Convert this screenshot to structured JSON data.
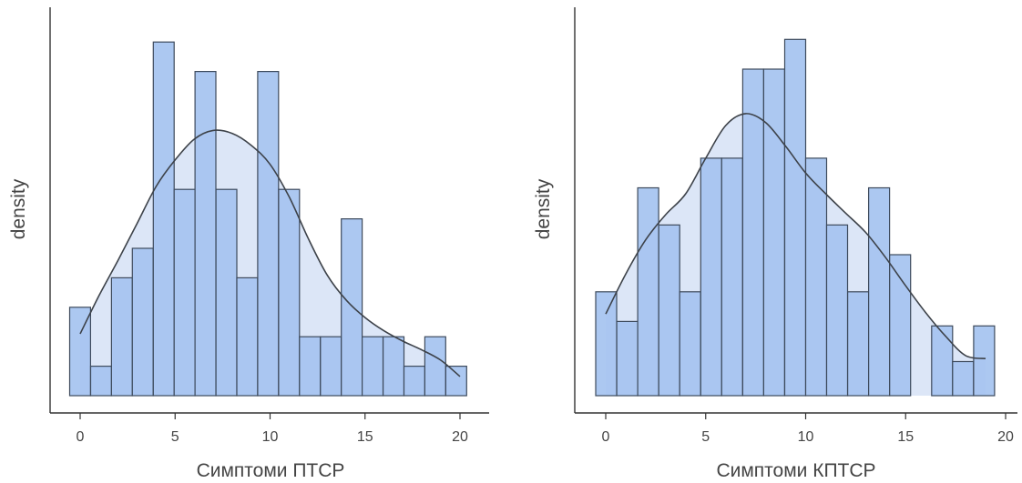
{
  "chart_data": [
    {
      "type": "histogram",
      "xlabel": "Симптоми ПТСР",
      "ylabel": "density",
      "xlim": [
        -1,
        21
      ],
      "xticks": [
        0,
        5,
        10,
        15,
        20
      ],
      "bin_width": 1.1,
      "bins": [
        {
          "x0": -0.55,
          "x1": 0.55,
          "density": 0.6
        },
        {
          "x0": 0.55,
          "x1": 1.65,
          "density": 0.2
        },
        {
          "x0": 1.65,
          "x1": 2.75,
          "density": 0.8
        },
        {
          "x0": 2.75,
          "x1": 3.85,
          "density": 1.0
        },
        {
          "x0": 3.85,
          "x1": 4.95,
          "density": 2.4
        },
        {
          "x0": 4.95,
          "x1": 6.05,
          "density": 1.4
        },
        {
          "x0": 6.05,
          "x1": 7.15,
          "density": 2.2
        },
        {
          "x0": 7.15,
          "x1": 8.25,
          "density": 1.4
        },
        {
          "x0": 8.25,
          "x1": 9.35,
          "density": 0.8
        },
        {
          "x0": 9.35,
          "x1": 10.45,
          "density": 2.2
        },
        {
          "x0": 10.45,
          "x1": 11.55,
          "density": 1.4
        },
        {
          "x0": 11.55,
          "x1": 12.65,
          "density": 0.4
        },
        {
          "x0": 12.65,
          "x1": 13.75,
          "density": 0.4
        },
        {
          "x0": 13.75,
          "x1": 14.85,
          "density": 1.2
        },
        {
          "x0": 14.85,
          "x1": 15.95,
          "density": 0.4
        },
        {
          "x0": 15.95,
          "x1": 17.05,
          "density": 0.4
        },
        {
          "x0": 17.05,
          "x1": 18.15,
          "density": 0.2
        },
        {
          "x0": 18.15,
          "x1": 19.25,
          "density": 0.4
        },
        {
          "x0": 19.25,
          "x1": 20.35,
          "density": 0.2
        }
      ],
      "density_curve": {
        "x": [
          0,
          1,
          2,
          3,
          4,
          5,
          6,
          7,
          8,
          9,
          10,
          11,
          12,
          13,
          14,
          15,
          16,
          17,
          18,
          19,
          20
        ],
        "y": [
          0.42,
          0.68,
          0.92,
          1.17,
          1.42,
          1.6,
          1.74,
          1.8,
          1.78,
          1.7,
          1.57,
          1.35,
          1.07,
          0.82,
          0.65,
          0.53,
          0.44,
          0.37,
          0.31,
          0.24,
          0.13
        ]
      },
      "ylim": [
        0,
        2.5
      ],
      "colors": {
        "bar_fill": "#a5c3f0",
        "bar_stroke": "#3d4a5c",
        "kde_fill": "#dce6f7",
        "kde_line": "#3d4249",
        "axis": "#333333"
      }
    },
    {
      "type": "histogram",
      "xlabel": "Симптоми КПТСР",
      "ylabel": "density",
      "xlim": [
        -1,
        20.2
      ],
      "xticks": [
        0,
        5,
        10,
        15,
        20
      ],
      "bin_width": 1.05,
      "bins": [
        {
          "x0": -0.5,
          "x1": 0.55,
          "density": 0.7
        },
        {
          "x0": 0.55,
          "x1": 1.6,
          "density": 0.5
        },
        {
          "x0": 1.6,
          "x1": 2.65,
          "density": 1.4
        },
        {
          "x0": 2.65,
          "x1": 3.7,
          "density": 1.15
        },
        {
          "x0": 3.7,
          "x1": 4.75,
          "density": 0.7
        },
        {
          "x0": 4.75,
          "x1": 5.8,
          "density": 1.6
        },
        {
          "x0": 5.8,
          "x1": 6.85,
          "density": 1.6
        },
        {
          "x0": 6.85,
          "x1": 7.9,
          "density": 2.2
        },
        {
          "x0": 7.9,
          "x1": 8.95,
          "density": 2.2
        },
        {
          "x0": 8.95,
          "x1": 10.0,
          "density": 2.4
        },
        {
          "x0": 10.0,
          "x1": 11.05,
          "density": 1.6
        },
        {
          "x0": 11.05,
          "x1": 12.1,
          "density": 1.15
        },
        {
          "x0": 12.1,
          "x1": 13.15,
          "density": 0.7
        },
        {
          "x0": 13.15,
          "x1": 14.2,
          "density": 1.4
        },
        {
          "x0": 14.2,
          "x1": 15.25,
          "density": 0.95
        },
        {
          "x0": 15.25,
          "x1": 16.3,
          "density": 0.0
        },
        {
          "x0": 16.3,
          "x1": 17.35,
          "density": 0.47
        },
        {
          "x0": 17.35,
          "x1": 18.4,
          "density": 0.23
        },
        {
          "x0": 18.4,
          "x1": 19.45,
          "density": 0.47
        }
      ],
      "density_curve": {
        "x": [
          0,
          1,
          2,
          3,
          4,
          5,
          6,
          7,
          8,
          9,
          10,
          11,
          12,
          13,
          14,
          15,
          16,
          17,
          18,
          19
        ],
        "y": [
          0.55,
          0.82,
          1.05,
          1.22,
          1.36,
          1.6,
          1.82,
          1.9,
          1.84,
          1.68,
          1.5,
          1.36,
          1.23,
          1.1,
          0.93,
          0.74,
          0.56,
          0.4,
          0.27,
          0.25
        ]
      },
      "ylim": [
        0,
        2.5
      ],
      "colors": {
        "bar_fill": "#a5c3f0",
        "bar_stroke": "#3d4a5c",
        "kde_fill": "#dce6f7",
        "kde_line": "#3d4249",
        "axis": "#333333"
      }
    }
  ]
}
